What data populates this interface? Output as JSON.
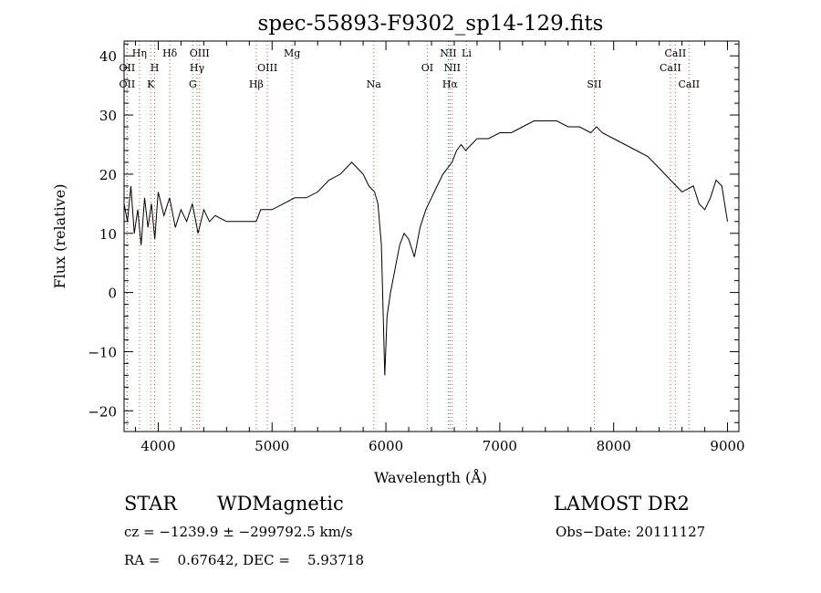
{
  "chart_data": {
    "type": "line",
    "title": "spec-55893-F9302_sp14-129.fits",
    "xlabel": "Wavelength (Å)",
    "ylabel": "Flux (relative)",
    "xlim": [
      3700,
      9100
    ],
    "ylim": [
      -23.5,
      42.5
    ],
    "xticks": [
      4000,
      5000,
      6000,
      7000,
      8000,
      9000
    ],
    "yticks": [
      -20,
      -10,
      0,
      10,
      20,
      30,
      40
    ],
    "grid": false,
    "series": [
      {
        "x": [
          3700,
          3730,
          3760,
          3790,
          3820,
          3850,
          3880,
          3910,
          3940,
          3970,
          4000,
          4050,
          4100,
          4150,
          4200,
          4250,
          4300,
          4350,
          4400,
          4450,
          4500,
          4600,
          4700,
          4800,
          4860,
          4900,
          5000,
          5100,
          5200,
          5300,
          5400,
          5500,
          5600,
          5700,
          5750,
          5800,
          5850,
          5900,
          5930,
          5960,
          5990,
          6010,
          6040,
          6080,
          6120,
          6160,
          6200,
          6250,
          6300,
          6350,
          6400,
          6450,
          6500,
          6540,
          6580,
          6620,
          6660,
          6700,
          6800,
          6900,
          7000,
          7100,
          7200,
          7300,
          7400,
          7500,
          7600,
          7700,
          7800,
          7850,
          7900,
          8000,
          8100,
          8200,
          8300,
          8400,
          8500,
          8600,
          8700,
          8750,
          8800,
          8850,
          8900,
          8950,
          9000
        ],
        "values": [
          15,
          12,
          18,
          10,
          14,
          8,
          16,
          11,
          15,
          9,
          17,
          13,
          16,
          11,
          14,
          12,
          15,
          10,
          14,
          12,
          13,
          12,
          12,
          12,
          12,
          14,
          14,
          15,
          16,
          16,
          17,
          19,
          20,
          22,
          21,
          20,
          18,
          17,
          15,
          8,
          -14,
          -4,
          0,
          4,
          8,
          10,
          9,
          6,
          11,
          14,
          16,
          18,
          20,
          21,
          22,
          24,
          25,
          24,
          26,
          26,
          27,
          27,
          28,
          29,
          29,
          29,
          28,
          28,
          27,
          28,
          27,
          26,
          25,
          24,
          23,
          21,
          19,
          17,
          18,
          15,
          14,
          16,
          19,
          18,
          12
        ]
      }
    ],
    "line_markers": [
      {
        "wl": 3727,
        "label": "OII",
        "row": 1
      },
      {
        "wl": 3727,
        "label": "OII",
        "row": 2
      },
      {
        "wl": 3835,
        "label": "Hη",
        "row": 0
      },
      {
        "wl": 3934,
        "label": "K",
        "row": 2
      },
      {
        "wl": 3969,
        "label": "H",
        "row": 1
      },
      {
        "wl": 4102,
        "label": "Hδ",
        "row": 0
      },
      {
        "wl": 4304,
        "label": "G",
        "row": 2
      },
      {
        "wl": 4341,
        "label": "Hγ",
        "row": 1
      },
      {
        "wl": 4363,
        "label": "OIII",
        "row": 0
      },
      {
        "wl": 4861,
        "label": "Hβ",
        "row": 2
      },
      {
        "wl": 4959,
        "label": "OIII",
        "row": 1
      },
      {
        "wl": 5175,
        "label": "Mg",
        "row": 0
      },
      {
        "wl": 5893,
        "label": "Na",
        "row": 2
      },
      {
        "wl": 6363,
        "label": "OI",
        "row": 1
      },
      {
        "wl": 6548,
        "label": "NII",
        "row": 0
      },
      {
        "wl": 6563,
        "label": "Hα",
        "row": 2
      },
      {
        "wl": 6583,
        "label": "NII",
        "row": 1
      },
      {
        "wl": 6708,
        "label": "Li",
        "row": 0
      },
      {
        "wl": 7830,
        "label": "SII",
        "row": 2
      },
      {
        "wl": 8498,
        "label": "CaII",
        "row": 1
      },
      {
        "wl": 8542,
        "label": "CaII",
        "row": 0
      },
      {
        "wl": 8662,
        "label": "CaII",
        "row": 2
      }
    ]
  },
  "info": {
    "object_class": "STAR",
    "subclass": "WDMagnetic",
    "survey": "LAMOST DR2",
    "redshift_line": "cz = −1239.9 ± −299792.5 km/s",
    "obs_date_line": "Obs−Date: 20111127",
    "coords_line": "RA =    0.67642, DEC =    5.93718"
  }
}
